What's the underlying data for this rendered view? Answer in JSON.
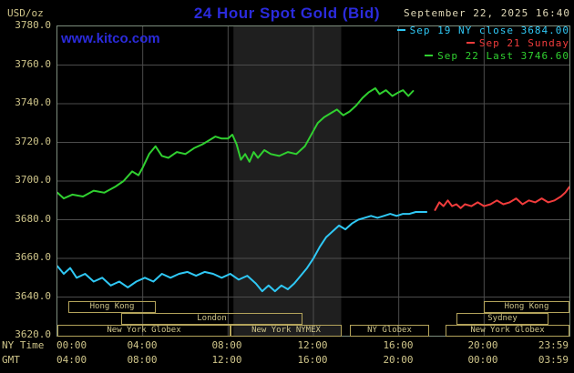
{
  "header": {
    "unit_label": "USD/oz",
    "title": "24 Hour Spot Gold (Bid)",
    "datetime": "September 22, 2025 16:40",
    "watermark": "www.kitco.com"
  },
  "legend": {
    "items": [
      {
        "label": "Sep 19 NY close 3684.00",
        "color": "#2fc8f5"
      },
      {
        "label": "Sep 21 Sunday",
        "color": "#f23c3c"
      },
      {
        "label": "Sep 22 Last 3746.60",
        "color": "#30d030"
      }
    ]
  },
  "axes": {
    "y_labels": [
      "3780.0",
      "3760.0",
      "3740.0",
      "3720.0",
      "3700.0",
      "3680.0",
      "3660.0",
      "3640.0",
      "3620.0"
    ],
    "x_row1_caption": "NY Time",
    "x_row2_caption": "GMT",
    "x_row1_labels": [
      "00:00",
      "04:00",
      "08:00",
      "12:00",
      "16:00",
      "20:00",
      "23:59"
    ],
    "x_row2_labels": [
      "04:00",
      "08:00",
      "12:00",
      "16:00",
      "20:00",
      "00:00",
      "03:59"
    ]
  },
  "sessions": [
    {
      "row": 0,
      "start": 0.5,
      "end": 4.6,
      "label": "Hong Kong"
    },
    {
      "row": 0,
      "start": 20.0,
      "end": 24.0,
      "label": "Hong Kong"
    },
    {
      "row": 1,
      "start": 3.0,
      "end": 11.5,
      "label": "London"
    },
    {
      "row": 1,
      "start": 18.7,
      "end": 23.0,
      "label": "Sydney"
    },
    {
      "row": 2,
      "start": 0.0,
      "end": 8.1,
      "label": "New York Globex"
    },
    {
      "row": 2,
      "start": 8.1,
      "end": 13.3,
      "label": "New York NYMEX"
    },
    {
      "row": 2,
      "start": 13.7,
      "end": 17.4,
      "label": "NY Globex"
    },
    {
      "row": 2,
      "start": 18.2,
      "end": 24.0,
      "label": "New York Globex"
    }
  ],
  "colors": {
    "background": "#000000",
    "title_blue": "#2b2bdc",
    "axis_tan": "#cfc58a",
    "date_tan": "#e0d9b8",
    "grid": "#4c4c4c",
    "plot_border": "#7e8e7e",
    "band": "#1f1f1f",
    "session_border": "#b3a35b"
  },
  "chart_data": {
    "type": "line",
    "title": "24 Hour Spot Gold (Bid)",
    "xlabel": "NY Time (hours)",
    "ylabel": "USD/oz",
    "xlim": [
      0,
      24
    ],
    "ylim": [
      3620,
      3780
    ],
    "x_ticks_hours": [
      0,
      4,
      8,
      12,
      16,
      20,
      24
    ],
    "y_ticks": [
      3620,
      3640,
      3660,
      3680,
      3700,
      3720,
      3740,
      3760,
      3780
    ],
    "grid": true,
    "legend_position": "top-right",
    "highlight_band_hours": [
      8.25,
      13.3
    ],
    "series": [
      {
        "name": "Sep 19 NY close 3684.00",
        "color": "#2fc8f5",
        "points": [
          [
            0,
            3656
          ],
          [
            0.3,
            3652
          ],
          [
            0.6,
            3655
          ],
          [
            0.9,
            3650
          ],
          [
            1.3,
            3652
          ],
          [
            1.7,
            3648
          ],
          [
            2.1,
            3650
          ],
          [
            2.5,
            3646
          ],
          [
            2.9,
            3648
          ],
          [
            3.3,
            3645
          ],
          [
            3.7,
            3648
          ],
          [
            4.1,
            3650
          ],
          [
            4.5,
            3648
          ],
          [
            4.9,
            3652
          ],
          [
            5.3,
            3650
          ],
          [
            5.7,
            3652
          ],
          [
            6.1,
            3653
          ],
          [
            6.5,
            3651
          ],
          [
            6.9,
            3653
          ],
          [
            7.3,
            3652
          ],
          [
            7.7,
            3650
          ],
          [
            8.1,
            3652
          ],
          [
            8.5,
            3649
          ],
          [
            8.9,
            3651
          ],
          [
            9.3,
            3647
          ],
          [
            9.6,
            3643
          ],
          [
            9.9,
            3646
          ],
          [
            10.2,
            3643
          ],
          [
            10.5,
            3646
          ],
          [
            10.8,
            3644
          ],
          [
            11.1,
            3647
          ],
          [
            11.4,
            3651
          ],
          [
            11.7,
            3655
          ],
          [
            12.0,
            3660
          ],
          [
            12.3,
            3666
          ],
          [
            12.6,
            3671
          ],
          [
            12.9,
            3674
          ],
          [
            13.2,
            3677
          ],
          [
            13.5,
            3675
          ],
          [
            13.8,
            3678
          ],
          [
            14.1,
            3680
          ],
          [
            14.4,
            3681
          ],
          [
            14.7,
            3682
          ],
          [
            15.0,
            3681
          ],
          [
            15.3,
            3682
          ],
          [
            15.6,
            3683
          ],
          [
            15.9,
            3682
          ],
          [
            16.2,
            3683
          ],
          [
            16.5,
            3683
          ],
          [
            16.8,
            3684
          ],
          [
            17.1,
            3684
          ],
          [
            17.3,
            3684
          ]
        ]
      },
      {
        "name": "Sep 21 Sunday",
        "color": "#f23c3c",
        "points": [
          [
            17.7,
            3685
          ],
          [
            17.9,
            3689
          ],
          [
            18.1,
            3687
          ],
          [
            18.3,
            3690
          ],
          [
            18.5,
            3687
          ],
          [
            18.7,
            3688
          ],
          [
            18.9,
            3686
          ],
          [
            19.1,
            3688
          ],
          [
            19.4,
            3687
          ],
          [
            19.7,
            3689
          ],
          [
            20.0,
            3687
          ],
          [
            20.3,
            3688
          ],
          [
            20.6,
            3690
          ],
          [
            20.9,
            3688
          ],
          [
            21.2,
            3689
          ],
          [
            21.5,
            3691
          ],
          [
            21.8,
            3688
          ],
          [
            22.1,
            3690
          ],
          [
            22.4,
            3689
          ],
          [
            22.7,
            3691
          ],
          [
            23.0,
            3689
          ],
          [
            23.3,
            3690
          ],
          [
            23.6,
            3692
          ],
          [
            23.8,
            3694
          ],
          [
            24.0,
            3697
          ]
        ]
      },
      {
        "name": "Sep 22 Last 3746.60",
        "color": "#30d030",
        "points": [
          [
            0,
            3694
          ],
          [
            0.3,
            3691
          ],
          [
            0.7,
            3693
          ],
          [
            1.2,
            3692
          ],
          [
            1.7,
            3695
          ],
          [
            2.2,
            3694
          ],
          [
            2.7,
            3697
          ],
          [
            3.1,
            3700
          ],
          [
            3.5,
            3705
          ],
          [
            3.8,
            3703
          ],
          [
            4.0,
            3707
          ],
          [
            4.3,
            3714
          ],
          [
            4.6,
            3718
          ],
          [
            4.9,
            3713
          ],
          [
            5.2,
            3712
          ],
          [
            5.6,
            3715
          ],
          [
            6.0,
            3714
          ],
          [
            6.4,
            3717
          ],
          [
            6.8,
            3719
          ],
          [
            7.1,
            3721
          ],
          [
            7.4,
            3723
          ],
          [
            7.7,
            3722
          ],
          [
            8.0,
            3722
          ],
          [
            8.2,
            3724
          ],
          [
            8.4,
            3719
          ],
          [
            8.6,
            3711
          ],
          [
            8.8,
            3714
          ],
          [
            9.0,
            3710
          ],
          [
            9.2,
            3715
          ],
          [
            9.4,
            3712
          ],
          [
            9.7,
            3716
          ],
          [
            10.0,
            3714
          ],
          [
            10.4,
            3713
          ],
          [
            10.8,
            3715
          ],
          [
            11.2,
            3714
          ],
          [
            11.6,
            3718
          ],
          [
            12.0,
            3726
          ],
          [
            12.2,
            3730
          ],
          [
            12.5,
            3733
          ],
          [
            12.8,
            3735
          ],
          [
            13.1,
            3737
          ],
          [
            13.4,
            3734
          ],
          [
            13.7,
            3736
          ],
          [
            14.0,
            3739
          ],
          [
            14.3,
            3743
          ],
          [
            14.6,
            3746
          ],
          [
            14.9,
            3748
          ],
          [
            15.1,
            3745
          ],
          [
            15.4,
            3747
          ],
          [
            15.7,
            3744
          ],
          [
            16.0,
            3746
          ],
          [
            16.2,
            3747
          ],
          [
            16.45,
            3744
          ],
          [
            16.67,
            3746.6
          ]
        ]
      }
    ]
  }
}
